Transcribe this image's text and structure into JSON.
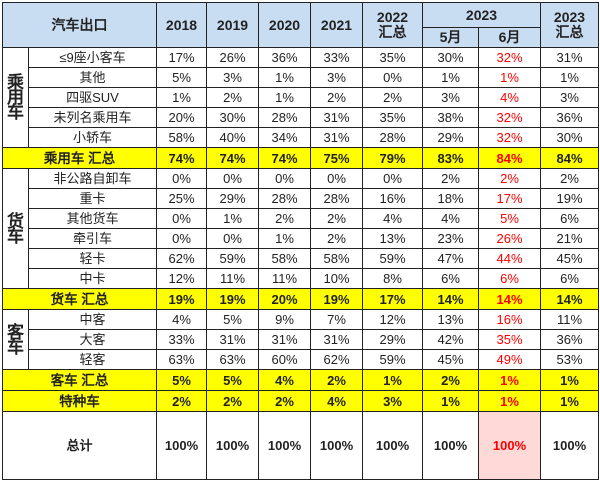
{
  "header": {
    "title": "汽车出口",
    "years": [
      "2018",
      "2019",
      "2020",
      "2021"
    ],
    "y2022": "2022",
    "y2022_sub": "汇总",
    "y2023": "2023",
    "m5": "5月",
    "m6": "6月",
    "y2023b": "2023",
    "y2023b_sub": "汇总"
  },
  "categories": {
    "passenger": [
      "乘",
      "用",
      "车"
    ],
    "truck": [
      "货",
      "车"
    ],
    "bus": [
      "客",
      "车"
    ]
  },
  "rows": {
    "passenger": [
      {
        "label": "≤9座小客车",
        "values": [
          "17%",
          "26%",
          "36%",
          "33%",
          "35%",
          "30%",
          "32%",
          "31%"
        ]
      },
      {
        "label": "其他",
        "values": [
          "5%",
          "3%",
          "1%",
          "3%",
          "0%",
          "1%",
          "1%",
          "1%"
        ]
      },
      {
        "label": "四驱SUV",
        "values": [
          "1%",
          "2%",
          "1%",
          "2%",
          "2%",
          "3%",
          "4%",
          "3%"
        ]
      },
      {
        "label": "未列名乘用车",
        "values": [
          "20%",
          "30%",
          "28%",
          "31%",
          "35%",
          "38%",
          "32%",
          "36%"
        ]
      },
      {
        "label": "小轿车",
        "values": [
          "58%",
          "40%",
          "34%",
          "31%",
          "28%",
          "29%",
          "32%",
          "30%"
        ]
      }
    ],
    "passenger_total": {
      "label": "乘用车 汇总",
      "values": [
        "74%",
        "74%",
        "74%",
        "75%",
        "79%",
        "83%",
        "84%",
        "84%"
      ]
    },
    "truck": [
      {
        "label": "非公路自卸车",
        "values": [
          "0%",
          "0%",
          "0%",
          "0%",
          "0%",
          "2%",
          "2%",
          "2%"
        ]
      },
      {
        "label": "重卡",
        "values": [
          "25%",
          "29%",
          "28%",
          "28%",
          "16%",
          "18%",
          "17%",
          "19%"
        ]
      },
      {
        "label": "其他货车",
        "values": [
          "0%",
          "1%",
          "2%",
          "2%",
          "4%",
          "4%",
          "5%",
          "6%"
        ]
      },
      {
        "label": "牵引车",
        "values": [
          "0%",
          "0%",
          "1%",
          "2%",
          "13%",
          "23%",
          "26%",
          "21%"
        ]
      },
      {
        "label": "轻卡",
        "values": [
          "62%",
          "59%",
          "58%",
          "58%",
          "59%",
          "47%",
          "44%",
          "45%"
        ]
      },
      {
        "label": "中卡",
        "values": [
          "12%",
          "11%",
          "11%",
          "10%",
          "8%",
          "6%",
          "6%",
          "6%"
        ]
      }
    ],
    "truck_total": {
      "label": "货车 汇总",
      "values": [
        "19%",
        "19%",
        "20%",
        "19%",
        "17%",
        "14%",
        "14%",
        "14%"
      ]
    },
    "bus": [
      {
        "label": "中客",
        "values": [
          "4%",
          "5%",
          "9%",
          "7%",
          "12%",
          "13%",
          "16%",
          "11%"
        ]
      },
      {
        "label": "大客",
        "values": [
          "33%",
          "31%",
          "31%",
          "31%",
          "29%",
          "42%",
          "35%",
          "36%"
        ]
      },
      {
        "label": "轻客",
        "values": [
          "63%",
          "63%",
          "60%",
          "62%",
          "59%",
          "45%",
          "49%",
          "53%"
        ]
      }
    ],
    "bus_total": {
      "label": "客车 汇总",
      "values": [
        "5%",
        "5%",
        "4%",
        "2%",
        "1%",
        "2%",
        "1%",
        "1%"
      ]
    },
    "special_total": {
      "label": "特种车",
      "values": [
        "2%",
        "2%",
        "2%",
        "4%",
        "3%",
        "1%",
        "1%",
        "1%"
      ]
    },
    "grand_total": {
      "label": "总计",
      "values": [
        "100%",
        "100%",
        "100%",
        "100%",
        "100%",
        "100%",
        "100%",
        "100%"
      ]
    }
  },
  "colors": {
    "header_bg": "#c9ddf2",
    "summary_bg": "#ffff00",
    "highlight_text": "#ff0000"
  }
}
